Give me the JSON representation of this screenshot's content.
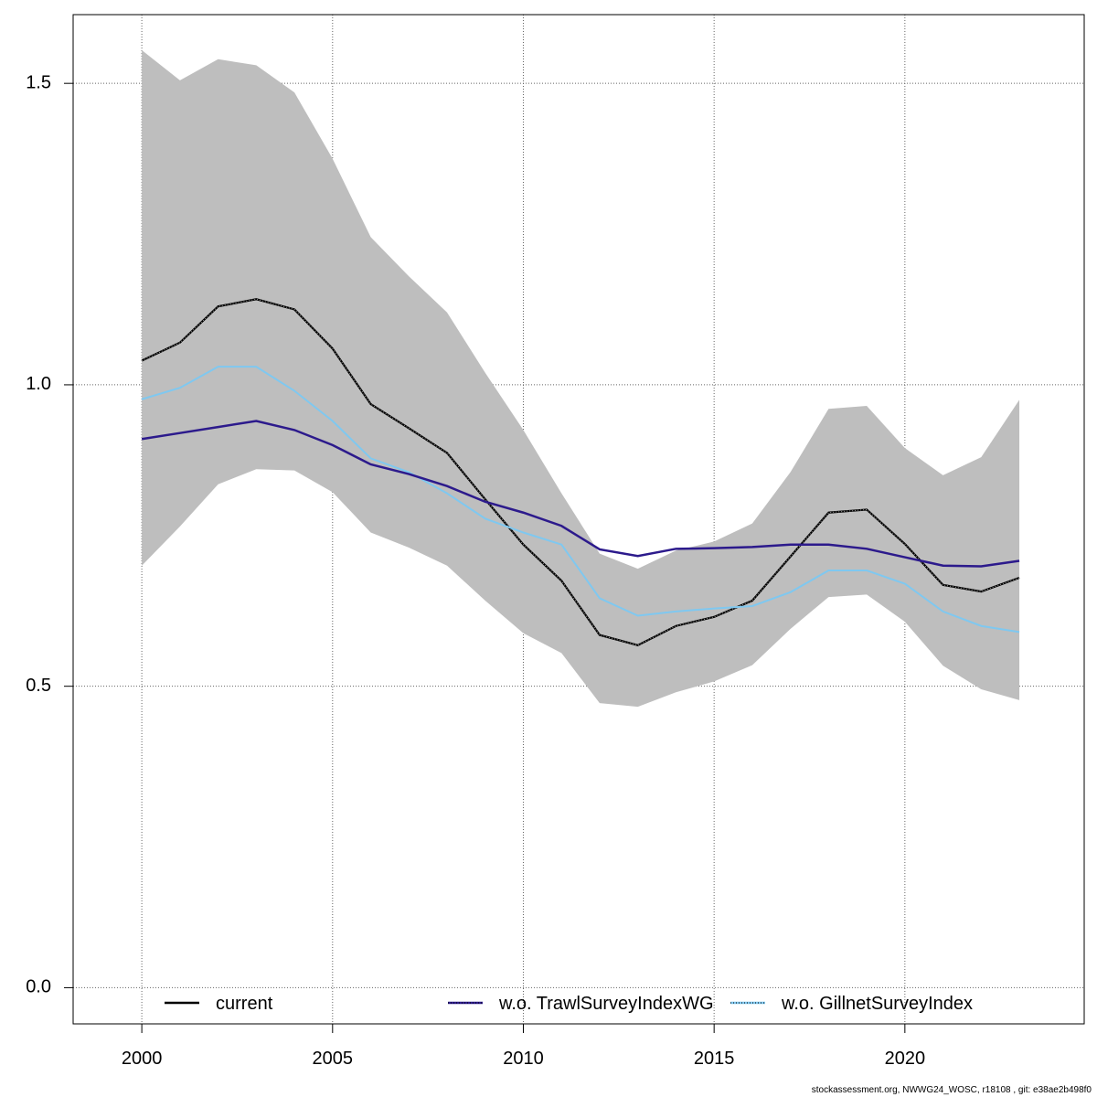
{
  "chart_data": {
    "type": "line",
    "title": "",
    "xlabel": "",
    "ylabel": "",
    "x": [
      2000,
      2001,
      2002,
      2003,
      2004,
      2005,
      2006,
      2007,
      2008,
      2009,
      2010,
      2011,
      2012,
      2013,
      2014,
      2015,
      2016,
      2017,
      2018,
      2019,
      2020,
      2021,
      2022,
      2023
    ],
    "xlim": [
      1998.2,
      2024.7
    ],
    "ylim": [
      -0.06,
      1.614
    ],
    "x_ticks": [
      2000,
      2005,
      2010,
      2015,
      2020
    ],
    "x_tick_labels": [
      "2000",
      "2005",
      "2010",
      "2015",
      "2020"
    ],
    "y_ticks": [
      0.0,
      0.5,
      1.0,
      1.5
    ],
    "y_tick_labels": [
      "0.0",
      "0.5",
      "1.0",
      "1.5"
    ],
    "grid": true,
    "legend_placement": "bottom",
    "band": {
      "upper": [
        1.555,
        1.505,
        1.54,
        1.53,
        1.485,
        1.375,
        1.245,
        1.18,
        1.12,
        1.02,
        0.925,
        0.82,
        0.72,
        0.695,
        0.725,
        0.74,
        0.77,
        0.855,
        0.96,
        0.965,
        0.895,
        0.85,
        0.88,
        0.975
      ],
      "lower": [
        0.7,
        0.765,
        0.835,
        0.86,
        0.858,
        0.822,
        0.755,
        0.73,
        0.7,
        0.642,
        0.588,
        0.555,
        0.472,
        0.466,
        0.49,
        0.508,
        0.535,
        0.595,
        0.648,
        0.652,
        0.607,
        0.534,
        0.495,
        0.477
      ],
      "color": "#bebebe"
    },
    "series": [
      {
        "name": "current",
        "color": "#000000",
        "values": [
          1.04,
          1.07,
          1.13,
          1.142,
          1.125,
          1.06,
          0.968,
          0.928,
          0.887,
          0.81,
          0.735,
          0.675,
          0.585,
          0.568,
          0.6,
          0.615,
          0.642,
          0.715,
          0.788,
          0.793,
          0.736,
          0.668,
          0.657,
          0.68
        ]
      },
      {
        "name": "w.o. TrawlSurveyIndexWG",
        "color": "#2c1a8c",
        "values": [
          0.91,
          0.92,
          0.93,
          0.94,
          0.925,
          0.9,
          0.868,
          0.852,
          0.832,
          0.806,
          0.788,
          0.766,
          0.727,
          0.716,
          0.728,
          0.729,
          0.731,
          0.735,
          0.735,
          0.728,
          0.714,
          0.7,
          0.699,
          0.708
        ]
      },
      {
        "name": "w.o. GillnetSurveyIndex",
        "color": "#7fc8f0",
        "values": [
          0.976,
          0.995,
          1.03,
          1.03,
          0.99,
          0.94,
          0.878,
          0.855,
          0.82,
          0.778,
          0.755,
          0.735,
          0.646,
          0.617,
          0.624,
          0.629,
          0.633,
          0.656,
          0.692,
          0.692,
          0.67,
          0.624,
          0.6,
          0.59
        ]
      }
    ]
  },
  "footer": "stockassessment.org, NWWG24_WOSC, r18108 , git: e38ae2b498f0"
}
